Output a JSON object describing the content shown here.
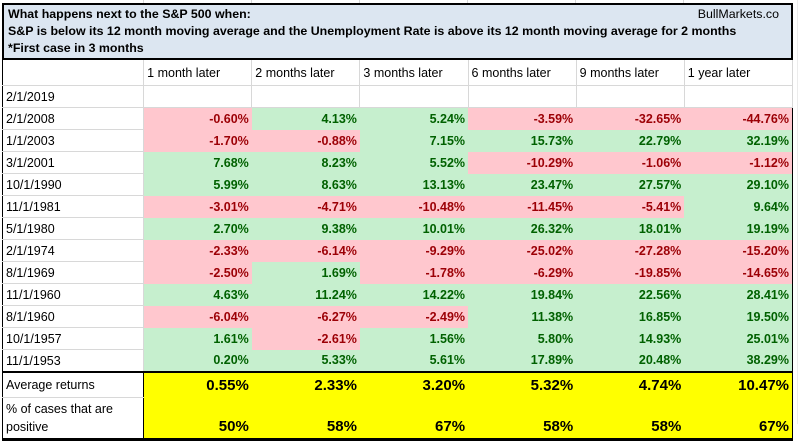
{
  "brand": "BullMarkets.co",
  "title": {
    "line1": "What happens next to the S&P 500 when:",
    "line2": "S&P is below its 12 month moving average and the Unemployment Rate is above its 12 month moving average for 2 months",
    "line3": "*First case in 3 months"
  },
  "colors": {
    "title_bg": "#DCE6F1",
    "positive_bg": "#C6EFCE",
    "positive_text": "#006100",
    "negative_bg": "#FFC7CE",
    "negative_text": "#9C0006",
    "summary_bg": "#FFFF00",
    "gridline": "#D8D8D8"
  },
  "columns": [
    "1 month later",
    "2 months later",
    "3 months later",
    "6 months later",
    "9 months later",
    "1 year later"
  ],
  "rows": [
    {
      "date": "2/1/2019",
      "values": [
        "",
        "",
        "",
        "",
        "",
        ""
      ]
    },
    {
      "date": "2/1/2008",
      "values": [
        "-0.60%",
        "4.13%",
        "5.24%",
        "-3.59%",
        "-32.65%",
        "-44.76%"
      ]
    },
    {
      "date": "1/1/2003",
      "values": [
        "-1.70%",
        "-0.88%",
        "7.15%",
        "15.73%",
        "22.79%",
        "32.19%"
      ]
    },
    {
      "date": "3/1/2001",
      "values": [
        "7.68%",
        "8.23%",
        "5.52%",
        "-10.29%",
        "-1.06%",
        "-1.12%"
      ]
    },
    {
      "date": "10/1/1990",
      "values": [
        "5.99%",
        "8.63%",
        "13.13%",
        "23.47%",
        "27.57%",
        "29.10%"
      ]
    },
    {
      "date": "11/1/1981",
      "values": [
        "-3.01%",
        "-4.71%",
        "-10.48%",
        "-11.45%",
        "-5.41%",
        "9.64%"
      ]
    },
    {
      "date": "5/1/1980",
      "values": [
        "2.70%",
        "9.38%",
        "10.01%",
        "26.32%",
        "18.01%",
        "19.19%"
      ]
    },
    {
      "date": "2/1/1974",
      "values": [
        "-2.33%",
        "-6.14%",
        "-9.29%",
        "-25.02%",
        "-27.28%",
        "-15.20%"
      ]
    },
    {
      "date": "8/1/1969",
      "values": [
        "-2.50%",
        "1.69%",
        "-1.78%",
        "-6.29%",
        "-19.85%",
        "-14.65%"
      ]
    },
    {
      "date": "11/1/1960",
      "values": [
        "4.63%",
        "11.24%",
        "14.22%",
        "19.84%",
        "22.56%",
        "28.41%"
      ]
    },
    {
      "date": "8/1/1960",
      "values": [
        "-6.04%",
        "-6.27%",
        "-2.49%",
        "11.38%",
        "16.85%",
        "19.50%"
      ]
    },
    {
      "date": "10/1/1957",
      "values": [
        "1.61%",
        "-2.61%",
        "1.56%",
        "5.80%",
        "14.93%",
        "25.01%"
      ]
    },
    {
      "date": "11/1/1953",
      "values": [
        "0.20%",
        "5.33%",
        "5.61%",
        "17.89%",
        "20.48%",
        "38.29%"
      ]
    }
  ],
  "summary": {
    "average_label": "Average returns",
    "average_values": [
      "0.55%",
      "2.33%",
      "3.20%",
      "5.32%",
      "4.74%",
      "10.47%"
    ],
    "percent_label": "% of cases that are positive",
    "percent_values": [
      "50%",
      "58%",
      "67%",
      "58%",
      "58%",
      "67%"
    ]
  },
  "chart_data": {
    "type": "table",
    "title": "What happens next to the S&P 500 when: S&P is below its 12 month moving average and the Unemployment Rate is above its 12 month moving average for 2 months (*First case in 3 months)",
    "categories": [
      "1 month later",
      "2 months later",
      "3 months later",
      "6 months later",
      "9 months later",
      "1 year later"
    ],
    "series": [
      {
        "name": "2/1/2019",
        "values": [
          null,
          null,
          null,
          null,
          null,
          null
        ]
      },
      {
        "name": "2/1/2008",
        "values": [
          -0.6,
          4.13,
          5.24,
          -3.59,
          -32.65,
          -44.76
        ]
      },
      {
        "name": "1/1/2003",
        "values": [
          -1.7,
          -0.88,
          7.15,
          15.73,
          22.79,
          32.19
        ]
      },
      {
        "name": "3/1/2001",
        "values": [
          7.68,
          8.23,
          5.52,
          -10.29,
          -1.06,
          -1.12
        ]
      },
      {
        "name": "10/1/1990",
        "values": [
          5.99,
          8.63,
          13.13,
          23.47,
          27.57,
          29.1
        ]
      },
      {
        "name": "11/1/1981",
        "values": [
          -3.01,
          -4.71,
          -10.48,
          -11.45,
          -5.41,
          9.64
        ]
      },
      {
        "name": "5/1/1980",
        "values": [
          2.7,
          9.38,
          10.01,
          26.32,
          18.01,
          19.19
        ]
      },
      {
        "name": "2/1/1974",
        "values": [
          -2.33,
          -6.14,
          -9.29,
          -25.02,
          -27.28,
          -15.2
        ]
      },
      {
        "name": "8/1/1969",
        "values": [
          -2.5,
          1.69,
          -1.78,
          -6.29,
          -19.85,
          -14.65
        ]
      },
      {
        "name": "11/1/1960",
        "values": [
          4.63,
          11.24,
          14.22,
          19.84,
          22.56,
          28.41
        ]
      },
      {
        "name": "8/1/1960",
        "values": [
          -6.04,
          -6.27,
          -2.49,
          11.38,
          16.85,
          19.5
        ]
      },
      {
        "name": "10/1/1957",
        "values": [
          1.61,
          -2.61,
          1.56,
          5.8,
          14.93,
          25.01
        ]
      },
      {
        "name": "11/1/1953",
        "values": [
          0.2,
          5.33,
          5.61,
          17.89,
          20.48,
          38.29
        ]
      },
      {
        "name": "Average returns",
        "values": [
          0.55,
          2.33,
          3.2,
          5.32,
          4.74,
          10.47
        ]
      },
      {
        "name": "% of cases that are positive",
        "values": [
          50,
          58,
          67,
          58,
          58,
          67
        ]
      }
    ]
  }
}
